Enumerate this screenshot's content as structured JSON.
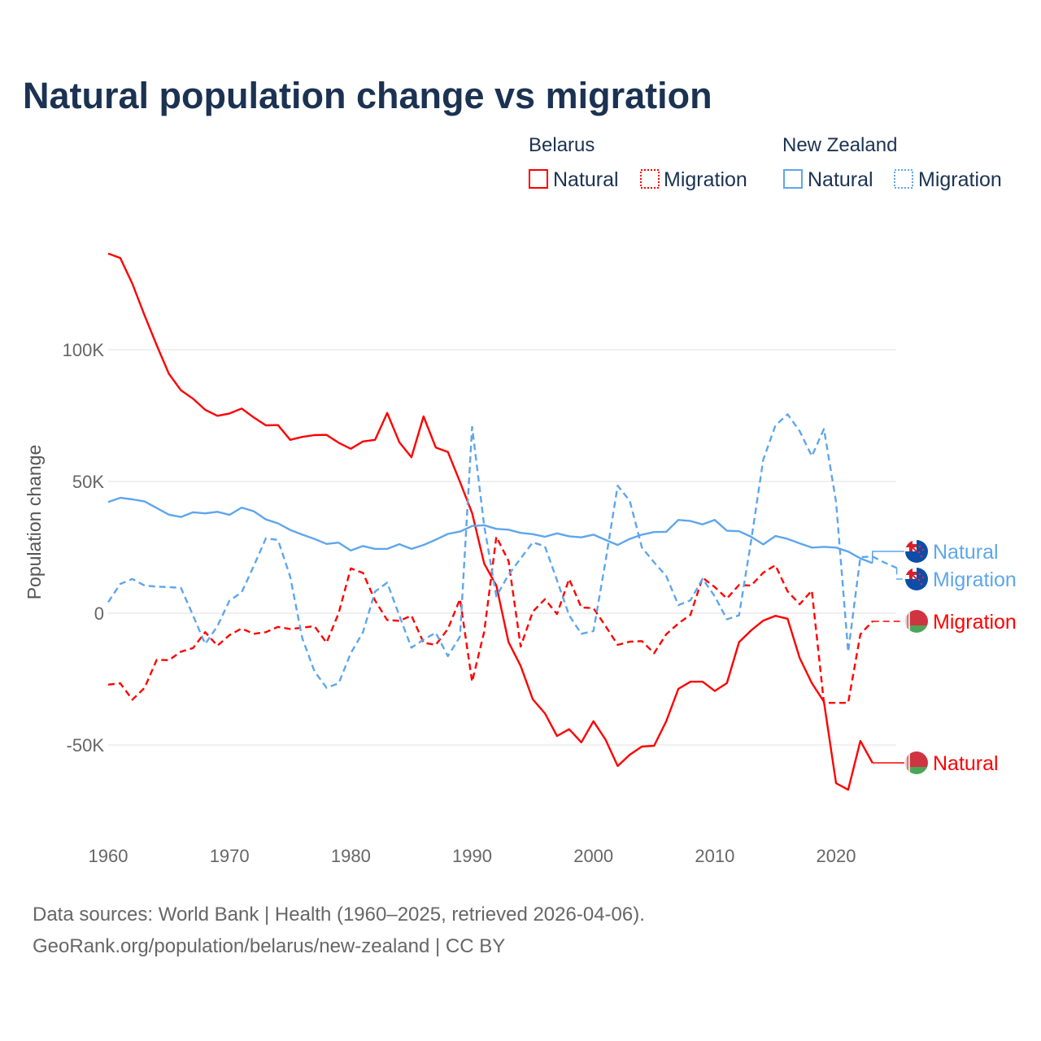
{
  "chart_data": {
    "type": "line",
    "title": "Natural population change vs migration",
    "xlabel": "",
    "ylabel": "Population change",
    "xlim": [
      1960,
      2025
    ],
    "ylim": [
      -80000,
      145000
    ],
    "x_ticks": [
      "1960",
      "1970",
      "1980",
      "1990",
      "2000",
      "2010",
      "2020"
    ],
    "y_ticks": [
      {
        "value": 100000,
        "label": "100K"
      },
      {
        "value": 50000,
        "label": "50K"
      },
      {
        "value": 0,
        "label": "0"
      },
      {
        "value": -50000,
        "label": "-50K"
      }
    ],
    "grid": true,
    "legend": {
      "placement": "top-right",
      "groups": [
        {
          "country": "Belarus",
          "items": [
            "Natural",
            "Migration"
          ]
        },
        {
          "country": "New Zealand",
          "items": [
            "Natural",
            "Migration"
          ]
        }
      ]
    },
    "start_year": 1960,
    "series": [
      {
        "id": "by-natural",
        "country": "Belarus",
        "name": "Natural",
        "color": "#ff0000",
        "dashed": false,
        "flag": "belarus-flag",
        "values_k": [
          136.5,
          134.8,
          125,
          113,
          101.7,
          90.9,
          84.6,
          81.4,
          77.2,
          74.9,
          75.8,
          77.7,
          74.3,
          71.3,
          71.4,
          65.8,
          66.9,
          67.6,
          67.7,
          64.7,
          62.4,
          65.2,
          65.8,
          76,
          64.9,
          59.2,
          74.7,
          62.9,
          61.2,
          49.8,
          38,
          18.8,
          10.5,
          -11,
          -20,
          -32.7,
          -38,
          -46.6,
          -44,
          -49,
          -41,
          -48,
          -58,
          -53.7,
          -50.6,
          -50.3,
          -41,
          -28.7,
          -26,
          -26,
          -29.5,
          -26.5,
          -11,
          -6.5,
          -2.8,
          -1,
          -2.1,
          -17,
          -26.5,
          -33.6,
          -64.5,
          -67,
          -48.5,
          -56.8
        ]
      },
      {
        "id": "by-migration",
        "country": "Belarus",
        "name": "Migration",
        "color": "#ff0000",
        "dashed": true,
        "flag": "belarus-flag",
        "values_k": [
          -27.1,
          -26.6,
          -32.8,
          -28.3,
          -17.7,
          -17.8,
          -14.6,
          -13.2,
          -7.2,
          -12.3,
          -8.3,
          -5.8,
          -7.8,
          -7.2,
          -5.2,
          -6,
          -5.5,
          -4.9,
          -11.2,
          0,
          17,
          15.3,
          4.8,
          -2.6,
          -2.9,
          -0.9,
          -11.2,
          -12,
          -6,
          5.4,
          -26,
          -7,
          29,
          19.8,
          -12.7,
          0.6,
          5.3,
          -0.3,
          13,
          2.2,
          1.9,
          -4.9,
          -12,
          -10.8,
          -10.6,
          -15.2,
          -8,
          -3.9,
          -0.6,
          13.5,
          9.9,
          5.6,
          10.7,
          10.5,
          15.4,
          18.2,
          8.3,
          3.4,
          8.6,
          -34,
          -34,
          -34,
          -8,
          -3.1
        ]
      },
      {
        "id": "nz-natural",
        "country": "New Zealand",
        "name": "Natural",
        "color": "#5ea6ec",
        "dashed": false,
        "flag": "new-zealand-flag",
        "values_k": [
          42.2,
          43.8,
          43.2,
          42.4,
          39.9,
          37.4,
          36.5,
          38.3,
          37.9,
          38.5,
          37.3,
          40.1,
          38.7,
          35.6,
          34.1,
          31.6,
          29.8,
          28.2,
          26.3,
          26.8,
          23.8,
          25.5,
          24.4,
          24.4,
          26.2,
          24.4,
          25.9,
          27.9,
          30.1,
          31,
          33.1,
          33.4,
          32,
          31.7,
          30.5,
          30,
          29,
          30.3,
          29.2,
          28.8,
          29.8,
          27.8,
          25.9,
          28.2,
          29.8,
          30.8,
          30.9,
          35.4,
          35,
          33.7,
          35.4,
          31.3,
          31.1,
          29,
          26.1,
          29.3,
          28.2,
          26.5,
          24.9,
          25.2,
          24.9,
          23.4,
          20.8,
          19.0
        ]
      },
      {
        "id": "nz-migration",
        "country": "New Zealand",
        "name": "Migration",
        "color": "#5ea6ec",
        "dashed": true,
        "flag": "new-zealand-flag",
        "values_k": [
          4.2,
          11.1,
          13,
          10.5,
          10.1,
          9.9,
          9.6,
          -0.9,
          -11.7,
          -4.9,
          4.8,
          7.9,
          17.9,
          28.4,
          27.8,
          13.9,
          -9.5,
          -22,
          -28.3,
          -26.6,
          -15.2,
          -7.2,
          8.2,
          11.6,
          -0.9,
          -13.1,
          -10,
          -7.4,
          -16.3,
          -8.9,
          70.7,
          33.1,
          6.4,
          14.6,
          20.8,
          26.9,
          25.4,
          12.5,
          -0.8,
          -7.8,
          -6.8,
          19.8,
          48.4,
          42.6,
          24.9,
          19.3,
          14.1,
          3.1,
          4.9,
          13.1,
          6.4,
          -2.3,
          -0.8,
          27.5,
          58.3,
          71.2,
          75.5,
          69.1,
          59.6,
          69.9,
          42.3,
          -14.7,
          21.3,
          21.5,
          19.2,
          17.2
        ]
      }
    ]
  },
  "footer": {
    "line1": "Data sources: World Bank | Health (1960–2025, retrieved 2026-04-06).",
    "line2": "GeoRank.org/population/belarus/new-zealand | CC BY"
  }
}
